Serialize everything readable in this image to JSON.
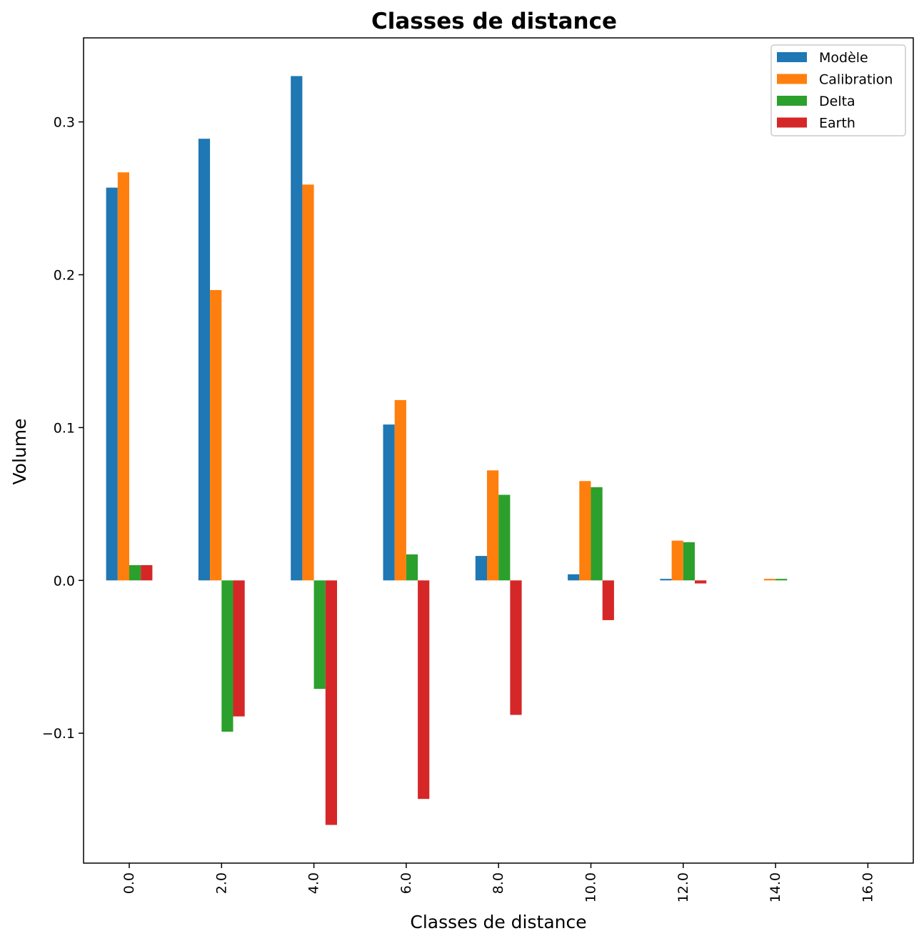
{
  "chart_data": {
    "type": "bar",
    "title": "Classes de distance",
    "xlabel": "Classes de distance",
    "ylabel": "Volume",
    "categories": [
      "0.0",
      "2.0",
      "4.0",
      "6.0",
      "8.0",
      "10.0",
      "12.0",
      "14.0",
      "16.0"
    ],
    "series": [
      {
        "name": "Modèle",
        "color": "#1f77b4",
        "values": [
          0.257,
          0.289,
          0.33,
          0.102,
          0.016,
          0.004,
          0.001,
          0.0,
          0.0
        ]
      },
      {
        "name": "Calibration",
        "color": "#ff7f0e",
        "values": [
          0.267,
          0.19,
          0.259,
          0.118,
          0.072,
          0.065,
          0.026,
          0.001,
          0.0
        ]
      },
      {
        "name": "Delta",
        "color": "#2ca02c",
        "values": [
          0.01,
          -0.099,
          -0.071,
          0.017,
          0.056,
          0.061,
          0.025,
          0.001,
          0.0
        ]
      },
      {
        "name": "Earth",
        "color": "#d62728",
        "values": [
          0.01,
          -0.089,
          -0.16,
          -0.143,
          -0.088,
          -0.026,
          -0.002,
          0.0,
          0.0
        ]
      }
    ],
    "y_ticks": [
      "−0.1",
      "0.0",
      "0.1",
      "0.2",
      "0.3"
    ],
    "y_tick_values": [
      -0.1,
      0.0,
      0.1,
      0.2,
      0.3
    ],
    "ylim": [
      -0.185,
      0.355
    ],
    "x_tick_rotation": "vertical",
    "legend_position": "top-right",
    "grid": false
  }
}
